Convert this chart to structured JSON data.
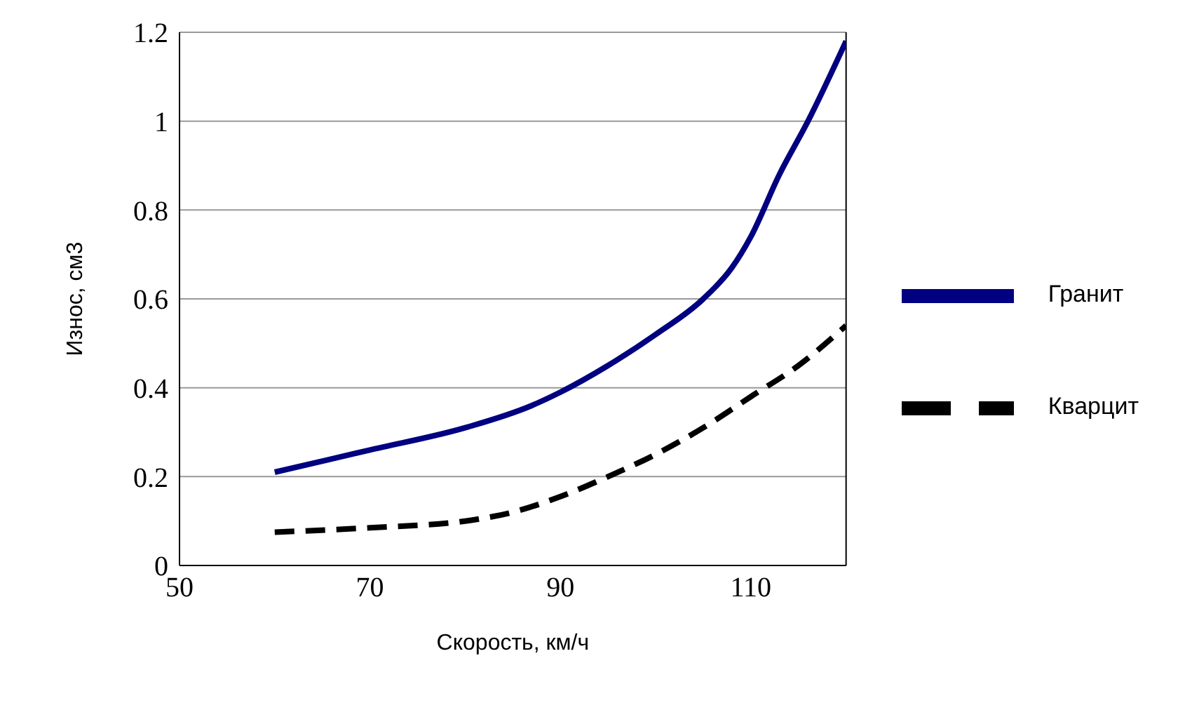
{
  "chart_data": {
    "type": "line",
    "xlabel": "Скорость, км/ч",
    "ylabel": "Износ, см3",
    "xlim": [
      50,
      120
    ],
    "xticks": [
      50,
      70,
      90,
      110
    ],
    "ylim": [
      0,
      1.2
    ],
    "yticks": [
      0,
      0.2,
      0.4,
      0.6,
      0.8,
      1,
      1.2
    ],
    "grid": "y",
    "legend": "right",
    "marker": "none",
    "series": [
      {
        "name": "Гранит",
        "color": "#000080",
        "line_style": "solid",
        "x": [
          60,
          70,
          80,
          87,
          90,
          95,
          100,
          105,
          108,
          110,
          113,
          116,
          120
        ],
        "values": [
          0.21,
          0.26,
          0.31,
          0.36,
          0.39,
          0.45,
          0.52,
          0.6,
          0.67,
          0.74,
          0.88,
          1.0,
          1.18
        ]
      },
      {
        "name": "Кварцит",
        "color": "#000000",
        "line_style": "dashed",
        "x": [
          60,
          70,
          80,
          85,
          90,
          95,
          100,
          105,
          110,
          115,
          120
        ],
        "values": [
          0.075,
          0.085,
          0.1,
          0.12,
          0.155,
          0.2,
          0.25,
          0.31,
          0.38,
          0.45,
          0.54
        ]
      }
    ]
  }
}
